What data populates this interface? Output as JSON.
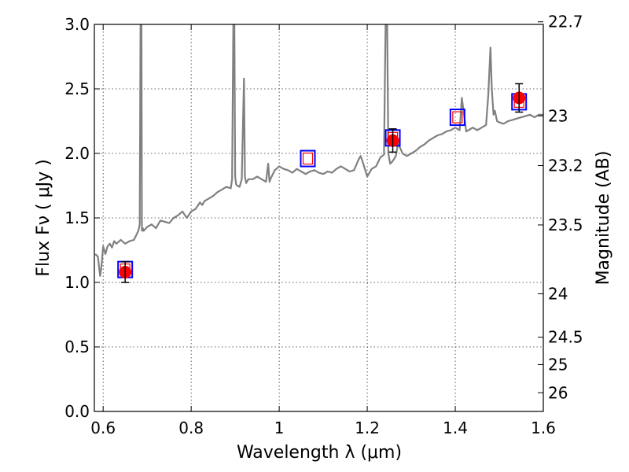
{
  "chart_data": {
    "type": "line",
    "xlabel": "Wavelength  λ (μm)",
    "ylabel": "Flux  Fν ( μJy )",
    "y2label": "Magnitude (AB)",
    "xlim": [
      0.58,
      1.6
    ],
    "ylim": [
      0,
      3.0
    ],
    "grid": true,
    "x_ticks": [
      {
        "value": 0.6,
        "label": "0.6"
      },
      {
        "value": 0.8,
        "label": "0.8"
      },
      {
        "value": 1.0,
        "label": "1"
      },
      {
        "value": 1.2,
        "label": "1.2"
      },
      {
        "value": 1.4,
        "label": "1.4"
      },
      {
        "value": 1.6,
        "label": "1.6"
      }
    ],
    "y_ticks": [
      {
        "value": 0.0,
        "label": "0.0"
      },
      {
        "value": 0.5,
        "label": "0.5"
      },
      {
        "value": 1.0,
        "label": "1.0"
      },
      {
        "value": 1.5,
        "label": "1.5"
      },
      {
        "value": 2.0,
        "label": "2.0"
      },
      {
        "value": 2.5,
        "label": "2.5"
      },
      {
        "value": 3.0,
        "label": "3.0"
      }
    ],
    "y2_ticks": [
      {
        "mag": 22.7,
        "label": "22.7"
      },
      {
        "mag": 23.0,
        "label": "23"
      },
      {
        "mag": 23.2,
        "label": "23.2"
      },
      {
        "mag": 23.5,
        "label": "23.5"
      },
      {
        "mag": 24.0,
        "label": "24"
      },
      {
        "mag": 24.5,
        "label": "24.5"
      },
      {
        "mag": 25.0,
        "label": "25"
      },
      {
        "mag": 26.0,
        "label": "26"
      }
    ],
    "series": [
      {
        "kind": "spectrum",
        "color": "#808080",
        "x": [
          0.582,
          0.588,
          0.593,
          0.596,
          0.6,
          0.605,
          0.61,
          0.615,
          0.62,
          0.625,
          0.63,
          0.64,
          0.65,
          0.66,
          0.67,
          0.68,
          0.683,
          0.685,
          0.687,
          0.688,
          0.69,
          0.692,
          0.7,
          0.71,
          0.72,
          0.73,
          0.74,
          0.75,
          0.76,
          0.77,
          0.78,
          0.79,
          0.8,
          0.81,
          0.82,
          0.825,
          0.83,
          0.84,
          0.85,
          0.86,
          0.87,
          0.88,
          0.89,
          0.893,
          0.896,
          0.898,
          0.9,
          0.902,
          0.905,
          0.91,
          0.915,
          0.92,
          0.922,
          0.925,
          0.93,
          0.94,
          0.95,
          0.96,
          0.97,
          0.975,
          0.978,
          0.98,
          0.99,
          1.0,
          1.01,
          1.02,
          1.03,
          1.04,
          1.05,
          1.06,
          1.07,
          1.08,
          1.09,
          1.1,
          1.11,
          1.12,
          1.13,
          1.14,
          1.15,
          1.16,
          1.17,
          1.18,
          1.185,
          1.19,
          1.2,
          1.21,
          1.22,
          1.23,
          1.238,
          1.242,
          1.245,
          1.248,
          1.252,
          1.258,
          1.265,
          1.27,
          1.28,
          1.29,
          1.3,
          1.31,
          1.32,
          1.33,
          1.34,
          1.35,
          1.36,
          1.37,
          1.38,
          1.39,
          1.4,
          1.41,
          1.415,
          1.42,
          1.425,
          1.43,
          1.44,
          1.45,
          1.46,
          1.47,
          1.475,
          1.48,
          1.483,
          1.487,
          1.49,
          1.495,
          1.5,
          1.51,
          1.52,
          1.53,
          1.54,
          1.55,
          1.56,
          1.57,
          1.58,
          1.59,
          1.6
        ],
        "y": [
          1.22,
          1.2,
          1.05,
          1.12,
          1.28,
          1.22,
          1.28,
          1.3,
          1.27,
          1.32,
          1.3,
          1.33,
          1.3,
          1.32,
          1.33,
          1.4,
          1.45,
          3.1,
          3.1,
          1.4,
          1.42,
          1.4,
          1.43,
          1.45,
          1.42,
          1.48,
          1.47,
          1.46,
          1.5,
          1.52,
          1.55,
          1.5,
          1.55,
          1.57,
          1.62,
          1.6,
          1.63,
          1.65,
          1.67,
          1.7,
          1.72,
          1.74,
          1.73,
          1.8,
          3.1,
          3.1,
          1.82,
          1.76,
          1.75,
          1.74,
          1.8,
          2.58,
          1.82,
          1.77,
          1.8,
          1.8,
          1.82,
          1.8,
          1.78,
          1.92,
          1.78,
          1.8,
          1.87,
          1.9,
          1.88,
          1.87,
          1.85,
          1.88,
          1.86,
          1.84,
          1.86,
          1.87,
          1.85,
          1.84,
          1.86,
          1.85,
          1.88,
          1.9,
          1.88,
          1.86,
          1.87,
          1.95,
          1.98,
          1.93,
          1.82,
          1.88,
          1.9,
          1.97,
          1.99,
          3.1,
          3.1,
          2.0,
          1.92,
          1.94,
          1.98,
          2.08,
          2.0,
          1.98,
          2.0,
          2.02,
          2.05,
          2.07,
          2.1,
          2.12,
          2.14,
          2.15,
          2.17,
          2.18,
          2.2,
          2.18,
          2.43,
          2.3,
          2.17,
          2.18,
          2.2,
          2.18,
          2.2,
          2.22,
          2.45,
          2.82,
          2.5,
          2.3,
          2.33,
          2.25,
          2.24,
          2.23,
          2.25,
          2.26,
          2.27,
          2.28,
          2.29,
          2.3,
          2.28,
          2.3,
          2.3
        ]
      },
      {
        "kind": "model-points",
        "marker": "open-square",
        "outer_color": "#0000ff",
        "inner_color": "#ff0000",
        "x": [
          0.65,
          1.065,
          1.258,
          1.405,
          1.545
        ],
        "y": [
          1.1,
          1.96,
          2.12,
          2.28,
          2.4
        ]
      },
      {
        "kind": "observed",
        "marker": "filled-circle",
        "color": "#ff0000",
        "x": [
          0.65,
          1.258,
          1.545
        ],
        "y": [
          1.08,
          2.1,
          2.43
        ],
        "yerr": [
          0.08,
          0.09,
          0.11
        ]
      }
    ]
  }
}
